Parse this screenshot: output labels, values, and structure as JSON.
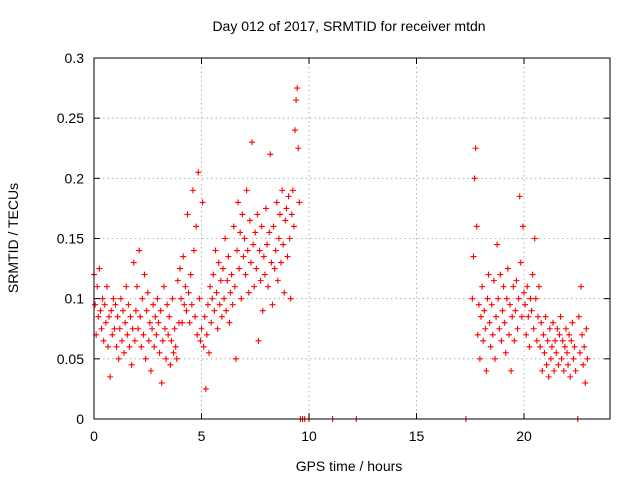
{
  "chart_data": {
    "type": "scatter",
    "title": "Day 012 of 2017, SRMTID for receiver mtdn",
    "xlabel": "GPS time / hours",
    "ylabel": "SRMTID / TECUs",
    "xlim": [
      0,
      24
    ],
    "ylim": [
      0,
      0.3
    ],
    "xticks": [
      0,
      5,
      10,
      15,
      20
    ],
    "xtick_labels": [
      "0",
      "5",
      "10",
      "15",
      "20"
    ],
    "yticks": [
      0,
      0.05,
      0.1,
      0.15,
      0.2,
      0.25,
      0.3
    ],
    "ytick_labels": [
      "0",
      "0.05",
      "0.1",
      "0.15",
      "0.2",
      "0.25",
      "0.3"
    ],
    "grid": true,
    "marker": "+",
    "color": "#ff0000",
    "series": [
      {
        "name": "SRMTID",
        "points": [
          [
            0.0,
            0.12
          ],
          [
            0.05,
            0.095
          ],
          [
            0.1,
            0.07
          ],
          [
            0.15,
            0.11
          ],
          [
            0.2,
            0.085
          ],
          [
            0.25,
            0.125
          ],
          [
            0.3,
            0.09
          ],
          [
            0.35,
            0.075
          ],
          [
            0.4,
            0.1
          ],
          [
            0.45,
            0.065
          ],
          [
            0.5,
            0.095
          ],
          [
            0.55,
            0.08
          ],
          [
            0.6,
            0.11
          ],
          [
            0.65,
            0.06
          ],
          [
            0.7,
            0.085
          ],
          [
            0.75,
            0.035
          ],
          [
            0.8,
            0.09
          ],
          [
            0.85,
            0.07
          ],
          [
            0.9,
            0.1
          ],
          [
            0.95,
            0.075
          ],
          [
            1.0,
            0.095
          ],
          [
            1.05,
            0.06
          ],
          [
            1.1,
            0.085
          ],
          [
            1.15,
            0.05
          ],
          [
            1.2,
            0.075
          ],
          [
            1.25,
            0.1
          ],
          [
            1.3,
            0.065
          ],
          [
            1.35,
            0.09
          ],
          [
            1.4,
            0.055
          ],
          [
            1.45,
            0.08
          ],
          [
            1.5,
            0.11
          ],
          [
            1.55,
            0.07
          ],
          [
            1.6,
            0.095
          ],
          [
            1.65,
            0.06
          ],
          [
            1.7,
            0.085
          ],
          [
            1.75,
            0.045
          ],
          [
            1.8,
            0.075
          ],
          [
            1.85,
            0.13
          ],
          [
            1.9,
            0.065
          ],
          [
            1.95,
            0.09
          ],
          [
            2.0,
            0.11
          ],
          [
            2.05,
            0.075
          ],
          [
            2.1,
            0.14
          ],
          [
            2.15,
            0.085
          ],
          [
            2.2,
            0.06
          ],
          [
            2.25,
            0.1
          ],
          [
            2.3,
            0.07
          ],
          [
            2.35,
            0.12
          ],
          [
            2.4,
            0.05
          ],
          [
            2.45,
            0.09
          ],
          [
            2.5,
            0.105
          ],
          [
            2.55,
            0.065
          ],
          [
            2.6,
            0.08
          ],
          [
            2.65,
            0.04
          ],
          [
            2.7,
            0.075
          ],
          [
            2.75,
            0.095
          ],
          [
            2.8,
            0.06
          ],
          [
            2.85,
            0.085
          ],
          [
            2.9,
            0.07
          ],
          [
            2.95,
            0.1
          ],
          [
            3.0,
            0.08
          ],
          [
            3.05,
            0.055
          ],
          [
            3.1,
            0.09
          ],
          [
            3.15,
            0.03
          ],
          [
            3.2,
            0.065
          ],
          [
            3.25,
            0.11
          ],
          [
            3.3,
            0.075
          ],
          [
            3.35,
            0.05
          ],
          [
            3.4,
            0.095
          ],
          [
            3.45,
            0.07
          ],
          [
            3.5,
            0.085
          ],
          [
            3.55,
            0.045
          ],
          [
            3.6,
            0.065
          ],
          [
            3.65,
            0.1
          ],
          [
            3.7,
            0.055
          ],
          [
            3.75,
            0.075
          ],
          [
            3.8,
            0.06
          ],
          [
            3.85,
            0.05
          ],
          [
            3.9,
            0.115
          ],
          [
            3.95,
            0.08
          ],
          [
            4.0,
            0.125
          ],
          [
            4.05,
            0.1
          ],
          [
            4.1,
            0.08
          ],
          [
            4.15,
            0.135
          ],
          [
            4.2,
            0.095
          ],
          [
            4.25,
            0.11
          ],
          [
            4.3,
            0.09
          ],
          [
            4.35,
            0.17
          ],
          [
            4.4,
            0.105
          ],
          [
            4.45,
            0.08
          ],
          [
            4.5,
            0.12
          ],
          [
            4.55,
            0.095
          ],
          [
            4.6,
            0.19
          ],
          [
            4.65,
            0.14
          ],
          [
            4.7,
            0.085
          ],
          [
            4.75,
            0.16
          ],
          [
            4.8,
            0.07
          ],
          [
            4.85,
            0.205
          ],
          [
            4.9,
            0.1
          ],
          [
            4.95,
            0.065
          ],
          [
            5.0,
            0.075
          ],
          [
            5.05,
            0.18
          ],
          [
            5.1,
            0.06
          ],
          [
            5.15,
            0.085
          ],
          [
            5.2,
            0.025
          ],
          [
            5.25,
            0.07
          ],
          [
            5.3,
            0.095
          ],
          [
            5.35,
            0.055
          ],
          [
            5.4,
            0.11
          ],
          [
            5.45,
            0.08
          ],
          [
            5.5,
            0.1
          ],
          [
            5.55,
            0.12
          ],
          [
            5.6,
            0.09
          ],
          [
            5.65,
            0.14
          ],
          [
            5.7,
            0.105
          ],
          [
            5.75,
            0.075
          ],
          [
            5.8,
            0.13
          ],
          [
            5.85,
            0.095
          ],
          [
            5.9,
            0.115
          ],
          [
            5.95,
            0.085
          ],
          [
            6.0,
            0.125
          ],
          [
            6.05,
            0.1
          ],
          [
            6.1,
            0.15
          ],
          [
            6.15,
            0.09
          ],
          [
            6.2,
            0.115
          ],
          [
            6.25,
            0.135
          ],
          [
            6.3,
            0.08
          ],
          [
            6.35,
            0.105
          ],
          [
            6.4,
            0.12
          ],
          [
            6.45,
            0.095
          ],
          [
            6.5,
            0.16
          ],
          [
            6.55,
            0.11
          ],
          [
            6.6,
            0.05
          ],
          [
            6.65,
            0.14
          ],
          [
            6.7,
            0.18
          ],
          [
            6.75,
            0.125
          ],
          [
            6.8,
            0.155
          ],
          [
            6.85,
            0.1
          ],
          [
            6.9,
            0.17
          ],
          [
            6.95,
            0.135
          ],
          [
            7.0,
            0.15
          ],
          [
            7.05,
            0.12
          ],
          [
            7.1,
            0.19
          ],
          [
            7.15,
            0.14
          ],
          [
            7.2,
            0.105
          ],
          [
            7.25,
            0.165
          ],
          [
            7.3,
            0.13
          ],
          [
            7.35,
            0.23
          ],
          [
            7.4,
            0.145
          ],
          [
            7.45,
            0.11
          ],
          [
            7.5,
            0.155
          ],
          [
            7.55,
            0.125
          ],
          [
            7.6,
            0.17
          ],
          [
            7.65,
            0.065
          ],
          [
            7.7,
            0.14
          ],
          [
            7.75,
            0.115
          ],
          [
            7.8,
            0.16
          ],
          [
            7.85,
            0.09
          ],
          [
            7.9,
            0.135
          ],
          [
            7.95,
            0.12
          ],
          [
            8.0,
            0.175
          ],
          [
            8.05,
            0.145
          ],
          [
            8.1,
            0.11
          ],
          [
            8.15,
            0.155
          ],
          [
            8.2,
            0.22
          ],
          [
            8.25,
            0.13
          ],
          [
            8.3,
            0.095
          ],
          [
            8.35,
            0.16
          ],
          [
            8.4,
            0.125
          ],
          [
            8.45,
            0.14
          ],
          [
            8.5,
            0.18
          ],
          [
            8.55,
            0.115
          ],
          [
            8.6,
            0.15
          ],
          [
            8.65,
            0.17
          ],
          [
            8.7,
            0.13
          ],
          [
            8.75,
            0.19
          ],
          [
            8.8,
            0.145
          ],
          [
            8.85,
            0.105
          ],
          [
            8.9,
            0.165
          ],
          [
            8.95,
            0.175
          ],
          [
            9.0,
            0.135
          ],
          [
            9.05,
            0.185
          ],
          [
            9.1,
            0.15
          ],
          [
            9.15,
            0.1
          ],
          [
            9.2,
            0.17
          ],
          [
            9.25,
            0.19
          ],
          [
            9.3,
            0.16
          ],
          [
            9.35,
            0.24
          ],
          [
            9.4,
            0.265
          ],
          [
            9.45,
            0.275
          ],
          [
            9.5,
            0.225
          ],
          [
            9.55,
            0.18
          ],
          [
            9.6,
            0.0
          ],
          [
            9.7,
            0.0
          ],
          [
            9.8,
            0.0
          ],
          [
            10.0,
            0.0
          ],
          [
            11.1,
            0.0
          ],
          [
            12.2,
            0.0
          ],
          [
            17.3,
            0.0
          ],
          [
            17.6,
            0.1
          ],
          [
            17.65,
            0.135
          ],
          [
            17.7,
            0.2
          ],
          [
            17.75,
            0.225
          ],
          [
            17.8,
            0.16
          ],
          [
            17.85,
            0.07
          ],
          [
            17.9,
            0.095
          ],
          [
            17.95,
            0.05
          ],
          [
            18.0,
            0.085
          ],
          [
            18.05,
            0.11
          ],
          [
            18.1,
            0.065
          ],
          [
            18.15,
            0.09
          ],
          [
            18.2,
            0.075
          ],
          [
            18.25,
            0.04
          ],
          [
            18.3,
            0.1
          ],
          [
            18.35,
            0.12
          ],
          [
            18.4,
            0.08
          ],
          [
            18.45,
            0.06
          ],
          [
            18.5,
            0.095
          ],
          [
            18.55,
            0.07
          ],
          [
            18.6,
            0.115
          ],
          [
            18.65,
            0.05
          ],
          [
            18.7,
            0.085
          ],
          [
            18.75,
            0.145
          ],
          [
            18.8,
            0.1
          ],
          [
            18.85,
            0.075
          ],
          [
            18.9,
            0.12
          ],
          [
            18.95,
            0.065
          ],
          [
            19.0,
            0.09
          ],
          [
            19.05,
            0.11
          ],
          [
            19.1,
            0.08
          ],
          [
            19.15,
            0.055
          ],
          [
            19.2,
            0.1
          ],
          [
            19.25,
            0.125
          ],
          [
            19.3,
            0.07
          ],
          [
            19.35,
            0.095
          ],
          [
            19.4,
            0.04
          ],
          [
            19.45,
            0.085
          ],
          [
            19.5,
            0.11
          ],
          [
            19.55,
            0.065
          ],
          [
            19.6,
            0.09
          ],
          [
            19.65,
            0.115
          ],
          [
            19.7,
            0.075
          ],
          [
            19.75,
            0.1
          ],
          [
            19.8,
            0.185
          ],
          [
            19.85,
            0.13
          ],
          [
            19.9,
            0.085
          ],
          [
            19.95,
            0.16
          ],
          [
            20.0,
            0.105
          ],
          [
            20.05,
            0.095
          ],
          [
            20.1,
            0.07
          ],
          [
            20.15,
            0.11
          ],
          [
            20.2,
            0.085
          ],
          [
            20.25,
            0.06
          ],
          [
            20.3,
            0.1
          ],
          [
            20.35,
            0.09
          ],
          [
            20.4,
            0.12
          ],
          [
            20.45,
            0.075
          ],
          [
            20.5,
            0.15
          ],
          [
            20.55,
            0.1
          ],
          [
            20.6,
            0.065
          ],
          [
            20.65,
            0.085
          ],
          [
            20.7,
            0.11
          ],
          [
            20.75,
            0.06
          ],
          [
            20.8,
            0.08
          ],
          [
            20.85,
            0.04
          ],
          [
            20.9,
            0.07
          ],
          [
            20.95,
            0.055
          ],
          [
            21.0,
            0.085
          ],
          [
            21.05,
            0.045
          ],
          [
            21.1,
            0.065
          ],
          [
            21.15,
            0.035
          ],
          [
            21.2,
            0.075
          ],
          [
            21.25,
            0.05
          ],
          [
            21.3,
            0.06
          ],
          [
            21.35,
            0.08
          ],
          [
            21.4,
            0.04
          ],
          [
            21.45,
            0.065
          ],
          [
            21.5,
            0.055
          ],
          [
            21.55,
            0.075
          ],
          [
            21.6,
            0.045
          ],
          [
            21.65,
            0.07
          ],
          [
            21.7,
            0.085
          ],
          [
            21.75,
            0.05
          ],
          [
            21.8,
            0.065
          ],
          [
            21.85,
            0.04
          ],
          [
            21.9,
            0.06
          ],
          [
            21.95,
            0.075
          ],
          [
            22.0,
            0.055
          ],
          [
            22.05,
            0.045
          ],
          [
            22.1,
            0.07
          ],
          [
            22.15,
            0.035
          ],
          [
            22.2,
            0.065
          ],
          [
            22.25,
            0.08
          ],
          [
            22.3,
            0.05
          ],
          [
            22.35,
            0.06
          ],
          [
            22.4,
            0.04
          ],
          [
            22.5,
            0.0
          ],
          [
            22.55,
            0.085
          ],
          [
            22.6,
            0.055
          ],
          [
            22.65,
            0.11
          ],
          [
            22.7,
            0.07
          ],
          [
            22.75,
            0.045
          ],
          [
            22.8,
            0.06
          ],
          [
            22.85,
            0.03
          ],
          [
            22.9,
            0.075
          ],
          [
            22.95,
            0.05
          ]
        ]
      }
    ]
  }
}
